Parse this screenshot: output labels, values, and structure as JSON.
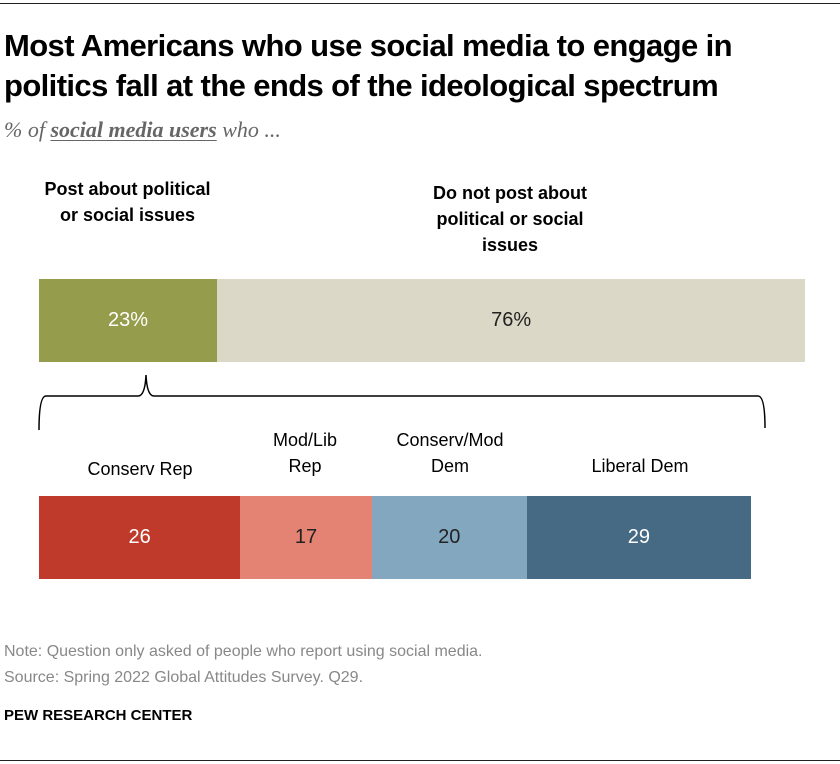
{
  "title": "Most Americans who use social media to engage in politics fall at the ends of the ideological spectrum",
  "subtitle": {
    "prefix": "% of",
    "emphasis": "social media users",
    "suffix": "who ..."
  },
  "chart_data": [
    {
      "type": "bar",
      "orientation": "horizontal-stacked",
      "unit": "%",
      "categories": [
        "Post about political or social issues",
        "Do not post about political or social issues"
      ],
      "values": [
        23,
        76
      ],
      "value_labels": [
        "23%",
        "76%"
      ],
      "colors": [
        "#959d4c",
        "#dcd8c7"
      ],
      "label_colors": [
        "#ffffff",
        "#222222"
      ]
    },
    {
      "type": "bar",
      "orientation": "horizontal-stacked",
      "categories": [
        "Conserv Rep",
        "Mod/Lib Rep",
        "Conserv/Mod Dem",
        "Liberal Dem"
      ],
      "values": [
        26,
        17,
        20,
        29
      ],
      "value_labels": [
        "26",
        "17",
        "20",
        "29"
      ],
      "colors": [
        "#bf3a2a",
        "#e48373",
        "#84a7c0",
        "#466a83"
      ],
      "label_colors": [
        "#ffffff",
        "#222222",
        "#222222",
        "#ffffff"
      ]
    }
  ],
  "note": "Note: Question only asked of people who report using social media.",
  "source": "Source: Spring 2022 Global Attitudes Survey. Q29.",
  "org": "PEW RESEARCH CENTER"
}
